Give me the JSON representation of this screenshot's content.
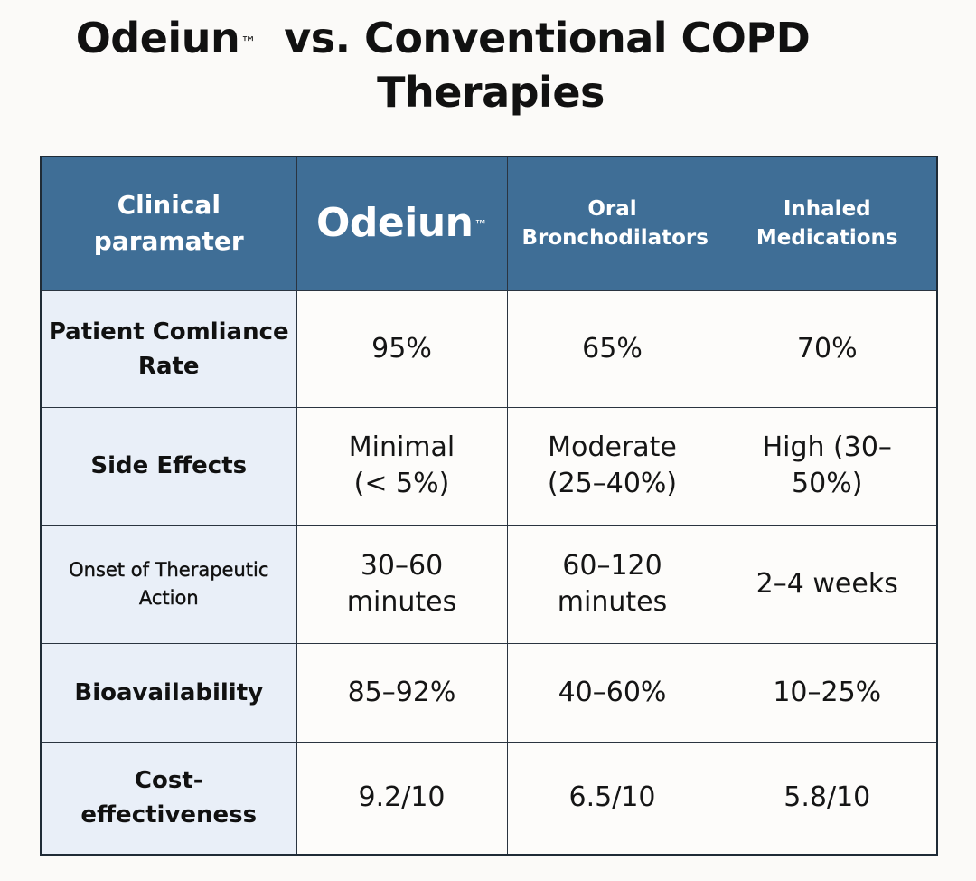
{
  "title": {
    "brand": "Odeiun",
    "brand_mark": "™",
    "rest_line1": "vs. Conventional COPD",
    "line2": "Therapies"
  },
  "chart_data": {
    "type": "table",
    "columns": [
      {
        "label": "Clinical paramater"
      },
      {
        "label": "Odeiun",
        "mark": "™"
      },
      {
        "label": "Oral Bronchodilators"
      },
      {
        "label": "Inhaled Medications"
      }
    ],
    "rows": [
      {
        "param": "Patient Comliance Rate",
        "values": [
          "95%",
          "65%",
          "70%"
        ]
      },
      {
        "param": "Side Effects",
        "values": [
          "Minimal (< 5%)",
          "Moderate (25–40%)",
          "High (30–50%)"
        ]
      },
      {
        "param": "Onset of Therapeutic Action",
        "values": [
          "30–60 minutes",
          "60–120 minutes",
          "2–4 weeks"
        ]
      },
      {
        "param": "Bioavailability",
        "values": [
          "85–92%",
          "40–60%",
          "10–25%"
        ]
      },
      {
        "param": "Cost-effectiveness",
        "values": [
          "9.2/10",
          "6.5/10",
          "5.8/10"
        ]
      }
    ]
  },
  "colors": {
    "header_bg": "#3f6e96",
    "header_text": "#ffffff",
    "param_bg": "#e9eff8",
    "cell_bg": "#fdfcfa",
    "border": "#2a3440",
    "page_bg": "#fbfaf8"
  }
}
